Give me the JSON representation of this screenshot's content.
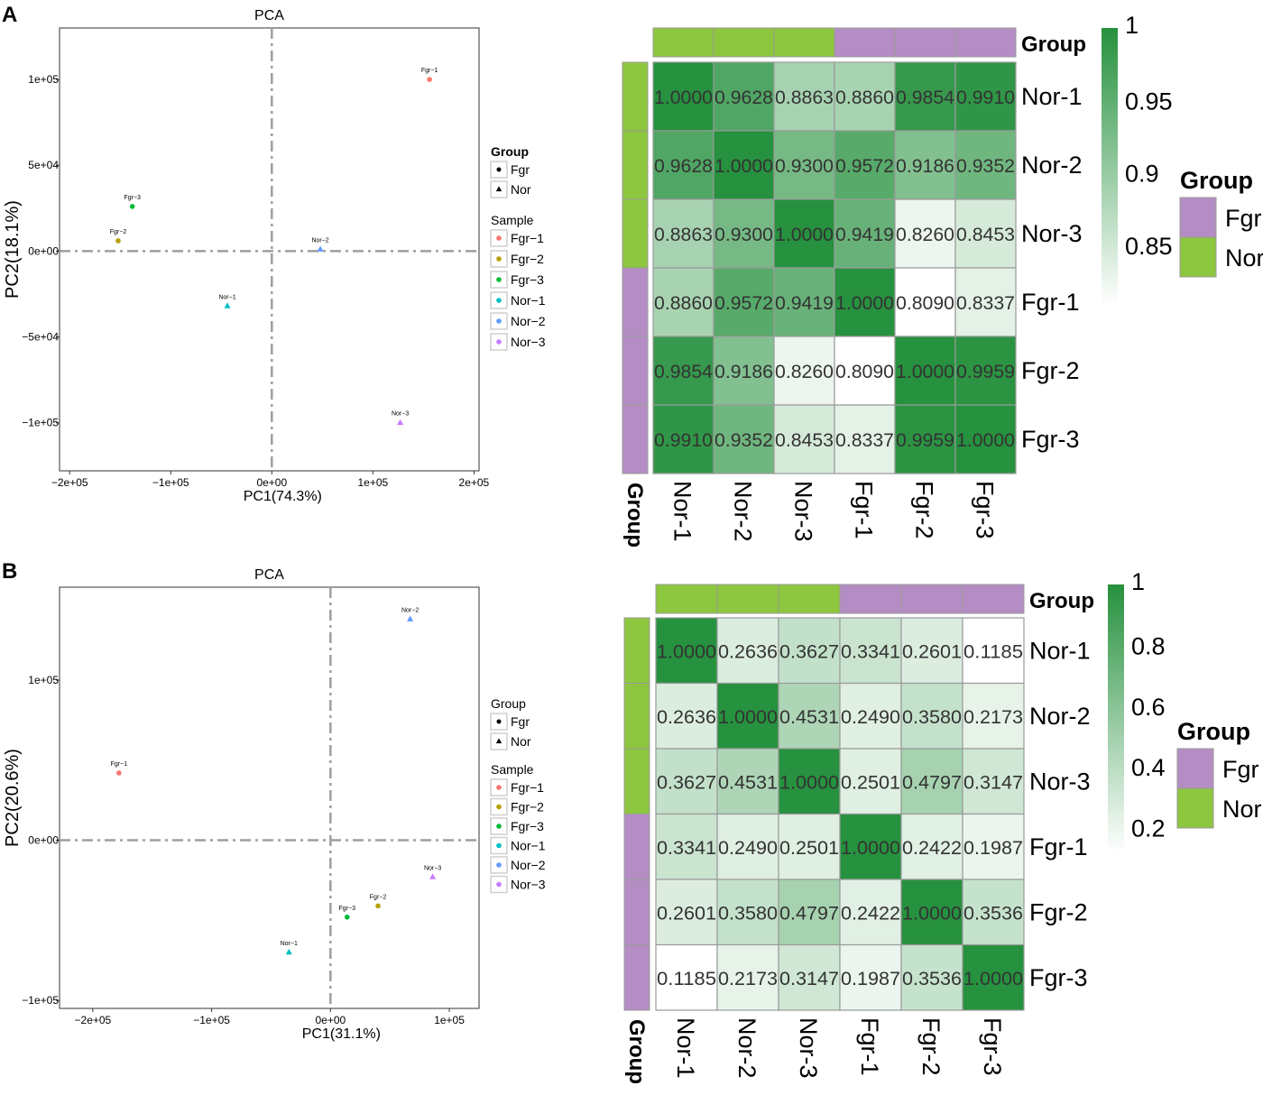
{
  "panels": [
    {
      "letter": "A",
      "pca": {
        "title": "PCA",
        "xlabel": "PC1(74.3%)",
        "ylabel": "PC2(18.1%)",
        "xlim": [
          -210000,
          205000
        ],
        "ylim": [
          -128000,
          130000
        ],
        "xticks": [
          {
            "v": -200000,
            "label": "−2e+05"
          },
          {
            "v": -100000,
            "label": "−1e+05"
          },
          {
            "v": 0,
            "label": "0e+00"
          },
          {
            "v": 100000,
            "label": "1e+05"
          },
          {
            "v": 200000,
            "label": "2e+05"
          }
        ],
        "yticks": [
          {
            "v": 100000,
            "label": "1e+05"
          },
          {
            "v": 50000,
            "label": "5e+04"
          },
          {
            "v": 0,
            "label": "0e+00"
          },
          {
            "v": -50000,
            "label": "−5e+04"
          },
          {
            "v": -100000,
            "label": "−1e+05"
          }
        ],
        "points": [
          {
            "name": "Fgr−1",
            "x": 156000,
            "y": 100000,
            "group": "Fgr",
            "color": "#F8766D"
          },
          {
            "name": "Fgr−2",
            "x": -152000,
            "y": 6000,
            "group": "Fgr",
            "color": "#B79F00"
          },
          {
            "name": "Fgr−3",
            "x": -138000,
            "y": 26000,
            "group": "Fgr",
            "color": "#00BA38"
          },
          {
            "name": "Nor−1",
            "x": -44000,
            "y": -32000,
            "group": "Nor",
            "color": "#00BFC4"
          },
          {
            "name": "Nor−2",
            "x": 48000,
            "y": 1000,
            "group": "Nor",
            "color": "#619CFF"
          },
          {
            "name": "Nor−3",
            "x": 127000,
            "y": -100000,
            "group": "Nor",
            "color": "#C77CFF"
          }
        ],
        "legend_group_title": "Group",
        "legend_groups": [
          {
            "label": "Fgr",
            "shape": "circle"
          },
          {
            "label": "Nor",
            "shape": "triangle"
          }
        ],
        "legend_sample_title": "Sample",
        "legend_samples": [
          {
            "label": "Fgr−1",
            "color": "#F8766D"
          },
          {
            "label": "Fgr−2",
            "color": "#B79F00"
          },
          {
            "label": "Fgr−3",
            "color": "#00BA38"
          },
          {
            "label": "Nor−1",
            "color": "#00BFC4"
          },
          {
            "label": "Nor−2",
            "color": "#619CFF"
          },
          {
            "label": "Nor−3",
            "color": "#C77CFF"
          }
        ]
      },
      "heatmap": {
        "row_labels": [
          "Nor-1",
          "Nor-2",
          "Nor-3",
          "Fgr-1",
          "Fgr-2",
          "Fgr-3"
        ],
        "col_labels": [
          "Nor-1",
          "Nor-2",
          "Nor-3",
          "Fgr-1",
          "Fgr-2",
          "Fgr-3"
        ],
        "groups": [
          "Nor",
          "Nor",
          "Nor",
          "Fgr",
          "Fgr",
          "Fgr"
        ],
        "values": [
          [
            "1.0000",
            "0.9628",
            "0.8863",
            "0.8860",
            "0.9854",
            "0.9910"
          ],
          [
            "0.9628",
            "1.0000",
            "0.9300",
            "0.9572",
            "0.9186",
            "0.9352"
          ],
          [
            "0.8863",
            "0.9300",
            "1.0000",
            "0.9419",
            "0.8260",
            "0.8453"
          ],
          [
            "0.8860",
            "0.9572",
            "0.9419",
            "1.0000",
            "0.8090",
            "0.8337"
          ],
          [
            "0.9854",
            "0.9186",
            "0.8260",
            "0.8090",
            "1.0000",
            "0.9959"
          ],
          [
            "0.9910",
            "0.9352",
            "0.8453",
            "0.8337",
            "0.9959",
            "1.0000"
          ]
        ],
        "scale_min": 0.809,
        "scale_max": 1.0,
        "colorbar_ticks": [
          {
            "v": 1.0,
            "label": "1"
          },
          {
            "v": 0.95,
            "label": "0.95"
          },
          {
            "v": 0.9,
            "label": "0.9"
          },
          {
            "v": 0.85,
            "label": "0.85"
          }
        ],
        "annotation_label": "Group",
        "legend_title": "Group",
        "legend_items": [
          {
            "label": "Fgr",
            "color": "#B48DC4"
          },
          {
            "label": "Nor",
            "color": "#8DC63F"
          }
        ]
      }
    },
    {
      "letter": "B",
      "pca": {
        "title": "PCA",
        "xlabel": "PC1(31.1%)",
        "ylabel": "PC2(20.6%)",
        "xlim": [
          -228000,
          125000
        ],
        "ylim": [
          -105000,
          158000
        ],
        "xticks": [
          {
            "v": -200000,
            "label": "−2e+05"
          },
          {
            "v": -100000,
            "label": "−1e+05"
          },
          {
            "v": 0,
            "label": "0e+00"
          },
          {
            "v": 100000,
            "label": "1e+05"
          }
        ],
        "yticks": [
          {
            "v": 100000,
            "label": "1e+05"
          },
          {
            "v": 0,
            "label": "0e+00"
          },
          {
            "v": -100000,
            "label": "−1e+05"
          }
        ],
        "points": [
          {
            "name": "Fgr−1",
            "x": -178000,
            "y": 42000,
            "group": "Fgr",
            "color": "#F8766D"
          },
          {
            "name": "Fgr−2",
            "x": 40000,
            "y": -41000,
            "group": "Fgr",
            "color": "#B79F00"
          },
          {
            "name": "Fgr−3",
            "x": 14000,
            "y": -48000,
            "group": "Fgr",
            "color": "#00BA38"
          },
          {
            "name": "Nor−1",
            "x": -35000,
            "y": -70000,
            "group": "Nor",
            "color": "#00BFC4"
          },
          {
            "name": "Nor−2",
            "x": 67000,
            "y": 138000,
            "group": "Nor",
            "color": "#619CFF"
          },
          {
            "name": "Nor−3",
            "x": 86000,
            "y": -23000,
            "group": "Nor",
            "color": "#C77CFF"
          }
        ],
        "legend_group_title": "Group",
        "legend_groups": [
          {
            "label": "Fgr",
            "shape": "circle"
          },
          {
            "label": "Nor",
            "shape": "triangle"
          }
        ],
        "legend_sample_title": "Sample",
        "legend_samples": [
          {
            "label": "Fgr−1",
            "color": "#F8766D"
          },
          {
            "label": "Fgr−2",
            "color": "#B79F00"
          },
          {
            "label": "Fgr−3",
            "color": "#00BA38"
          },
          {
            "label": "Nor−1",
            "color": "#00BFC4"
          },
          {
            "label": "Nor−2",
            "color": "#619CFF"
          },
          {
            "label": "Nor−3",
            "color": "#C77CFF"
          }
        ]
      },
      "heatmap": {
        "row_labels": [
          "Nor-1",
          "Nor-2",
          "Nor-3",
          "Fgr-1",
          "Fgr-2",
          "Fgr-3"
        ],
        "col_labels": [
          "Nor-1",
          "Nor-2",
          "Nor-3",
          "Fgr-1",
          "Fgr-2",
          "Fgr-3"
        ],
        "groups": [
          "Nor",
          "Nor",
          "Nor",
          "Fgr",
          "Fgr",
          "Fgr"
        ],
        "values": [
          [
            "1.0000",
            "0.2636",
            "0.3627",
            "0.3341",
            "0.2601",
            "0.1185"
          ],
          [
            "0.2636",
            "1.0000",
            "0.4531",
            "0.2490",
            "0.3580",
            "0.2173"
          ],
          [
            "0.3627",
            "0.4531",
            "1.0000",
            "0.2501",
            "0.4797",
            "0.3147"
          ],
          [
            "0.3341",
            "0.2490",
            "0.2501",
            "1.0000",
            "0.2422",
            "0.1987"
          ],
          [
            "0.2601",
            "0.3580",
            "0.4797",
            "0.2422",
            "1.0000",
            "0.3536"
          ],
          [
            "0.1185",
            "0.2173",
            "0.3147",
            "0.1987",
            "0.3536",
            "1.0000"
          ]
        ],
        "scale_min": 0.1185,
        "scale_max": 1.0,
        "colorbar_ticks": [
          {
            "v": 1.0,
            "label": "1"
          },
          {
            "v": 0.8,
            "label": "0.8"
          },
          {
            "v": 0.6,
            "label": "0.6"
          },
          {
            "v": 0.4,
            "label": "0.4"
          },
          {
            "v": 0.2,
            "label": "0.2"
          }
        ],
        "annotation_label": "Group",
        "legend_title": "Group",
        "legend_items": [
          {
            "label": "Fgr",
            "color": "#B48DC4"
          },
          {
            "label": "Nor",
            "color": "#8DC63F"
          }
        ]
      }
    }
  ],
  "chart_data": [
    {
      "type": "scatter",
      "title": "PCA",
      "panel": "A",
      "xlabel": "PC1(74.3%)",
      "ylabel": "PC2(18.1%)",
      "series": [
        {
          "name": "Fgr",
          "points": [
            {
              "label": "Fgr-1",
              "x": 156000,
              "y": 100000
            },
            {
              "label": "Fgr-2",
              "x": -152000,
              "y": 6000
            },
            {
              "label": "Fgr-3",
              "x": -138000,
              "y": 26000
            }
          ]
        },
        {
          "name": "Nor",
          "points": [
            {
              "label": "Nor-1",
              "x": -44000,
              "y": -32000
            },
            {
              "label": "Nor-2",
              "x": 48000,
              "y": 1000
            },
            {
              "label": "Nor-3",
              "x": 127000,
              "y": -100000
            }
          ]
        }
      ]
    },
    {
      "type": "heatmap",
      "panel": "A",
      "rows": [
        "Nor-1",
        "Nor-2",
        "Nor-3",
        "Fgr-1",
        "Fgr-2",
        "Fgr-3"
      ],
      "columns": [
        "Nor-1",
        "Nor-2",
        "Nor-3",
        "Fgr-1",
        "Fgr-2",
        "Fgr-3"
      ],
      "values": [
        [
          1.0,
          0.9628,
          0.8863,
          0.886,
          0.9854,
          0.991
        ],
        [
          0.9628,
          1.0,
          0.93,
          0.9572,
          0.9186,
          0.9352
        ],
        [
          0.8863,
          0.93,
          1.0,
          0.9419,
          0.826,
          0.8453
        ],
        [
          0.886,
          0.9572,
          0.9419,
          1.0,
          0.809,
          0.8337
        ],
        [
          0.9854,
          0.9186,
          0.826,
          0.809,
          1.0,
          0.9959
        ],
        [
          0.991,
          0.9352,
          0.8453,
          0.8337,
          0.9959,
          1.0
        ]
      ]
    },
    {
      "type": "scatter",
      "title": "PCA",
      "panel": "B",
      "xlabel": "PC1(31.1%)",
      "ylabel": "PC2(20.6%)",
      "series": [
        {
          "name": "Fgr",
          "points": [
            {
              "label": "Fgr-1",
              "x": -178000,
              "y": 42000
            },
            {
              "label": "Fgr-2",
              "x": 40000,
              "y": -41000
            },
            {
              "label": "Fgr-3",
              "x": 14000,
              "y": -48000
            }
          ]
        },
        {
          "name": "Nor",
          "points": [
            {
              "label": "Nor-1",
              "x": -35000,
              "y": -70000
            },
            {
              "label": "Nor-2",
              "x": 67000,
              "y": 138000
            },
            {
              "label": "Nor-3",
              "x": 86000,
              "y": -23000
            }
          ]
        }
      ]
    },
    {
      "type": "heatmap",
      "panel": "B",
      "rows": [
        "Nor-1",
        "Nor-2",
        "Nor-3",
        "Fgr-1",
        "Fgr-2",
        "Fgr-3"
      ],
      "columns": [
        "Nor-1",
        "Nor-2",
        "Nor-3",
        "Fgr-1",
        "Fgr-2",
        "Fgr-3"
      ],
      "values": [
        [
          1.0,
          0.2636,
          0.3627,
          0.3341,
          0.2601,
          0.1185
        ],
        [
          0.2636,
          1.0,
          0.4531,
          0.249,
          0.358,
          0.2173
        ],
        [
          0.3627,
          0.4531,
          1.0,
          0.2501,
          0.4797,
          0.3147
        ],
        [
          0.3341,
          0.249,
          0.2501,
          1.0,
          0.2422,
          0.1987
        ],
        [
          0.2601,
          0.358,
          0.4797,
          0.2422,
          1.0,
          0.3536
        ],
        [
          0.1185,
          0.2173,
          0.3147,
          0.1987,
          0.3536,
          1.0
        ]
      ]
    }
  ]
}
